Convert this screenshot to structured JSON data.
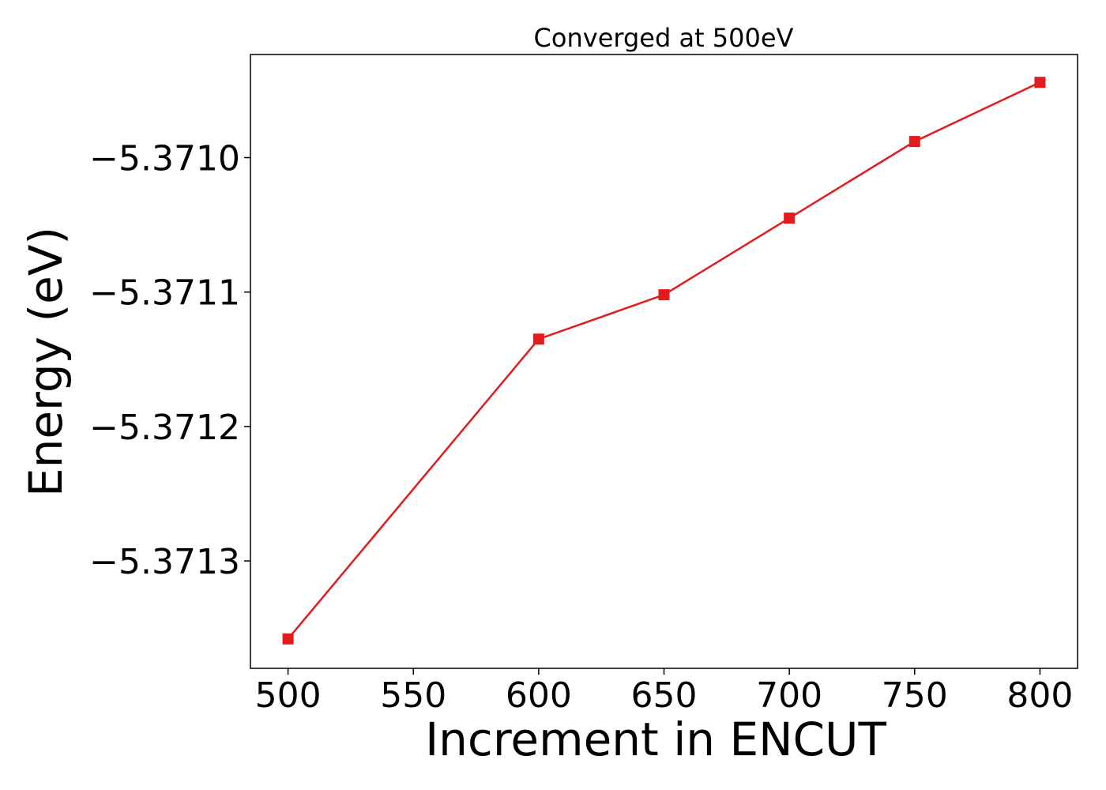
{
  "chart_data": {
    "type": "line",
    "title": "Converged at 500eV",
    "xlabel": "Increment in ENCUT",
    "ylabel": "Energy (eV)",
    "x": [
      500,
      600,
      650,
      700,
      750,
      800
    ],
    "series": [
      {
        "values": [
          -5.371358,
          -5.371135,
          -5.371102,
          -5.371045,
          -5.370988,
          -5.370944
        ],
        "color": "#e41a1c",
        "marker": "square"
      }
    ],
    "xticks": [
      500,
      550,
      600,
      650,
      700,
      750,
      800
    ],
    "xtick_labels": [
      "500",
      "550",
      "600",
      "650",
      "700",
      "750",
      "800"
    ],
    "yticks": [
      -5.3713,
      -5.3712,
      -5.3711,
      -5.371
    ],
    "ytick_labels": [
      "−5.3713",
      "−5.3712",
      "−5.3711",
      "−5.3710"
    ],
    "xlim": [
      485,
      815
    ],
    "ylim": [
      -5.3713799,
      -5.3709233
    ],
    "grid": false,
    "legend": "none"
  }
}
